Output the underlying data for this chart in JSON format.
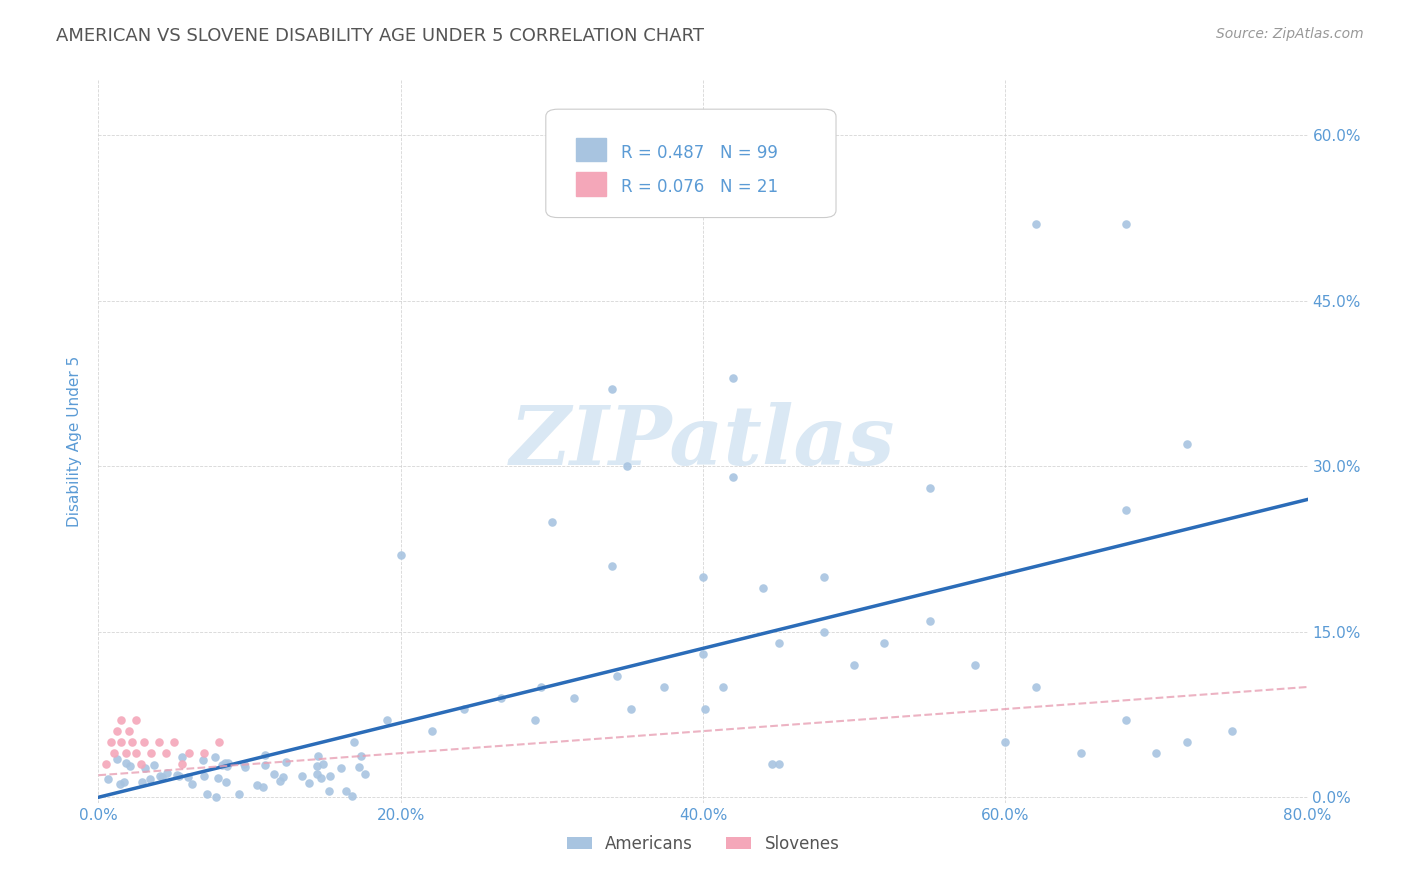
{
  "title": "AMERICAN VS SLOVENE DISABILITY AGE UNDER 5 CORRELATION CHART",
  "source": "Source: ZipAtlas.com",
  "ylabel": "Disability Age Under 5",
  "r_american": 0.487,
  "n_american": 99,
  "r_slovene": 0.076,
  "n_slovene": 21,
  "xlim": [
    0.0,
    0.8
  ],
  "ylim": [
    -0.005,
    0.65
  ],
  "yticks": [
    0.0,
    0.15,
    0.3,
    0.45,
    0.6
  ],
  "ytick_labels": [
    "0.0%",
    "15.0%",
    "30.0%",
    "45.0%",
    "60.0%"
  ],
  "xticks": [
    0.0,
    0.2,
    0.4,
    0.6,
    0.8
  ],
  "xtick_labels": [
    "0.0%",
    "20.0%",
    "40.0%",
    "60.0%",
    "80.0%"
  ],
  "american_color": "#a8c4e0",
  "slovene_color": "#f4a7b9",
  "trend_american_color": "#2b6cb8",
  "trend_slovene_color": "#e8a0b4",
  "background_color": "#ffffff",
  "grid_color": "#cccccc",
  "title_color": "#555555",
  "axis_label_color": "#5b9bd5",
  "tick_label_color": "#5b9bd5",
  "watermark_text": "ZIPatlas",
  "watermark_color": "#dae8f4",
  "trend_am_x0": 0.0,
  "trend_am_y0": 0.0,
  "trend_am_x1": 0.8,
  "trend_am_y1": 0.27,
  "trend_sl_x0": 0.0,
  "trend_sl_y0": 0.02,
  "trend_sl_x1": 0.8,
  "trend_sl_y1": 0.1
}
